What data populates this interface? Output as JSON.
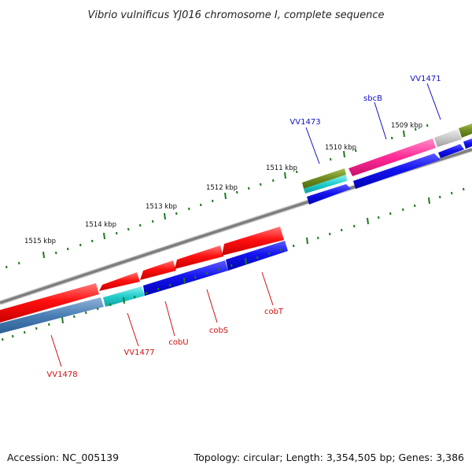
{
  "title": "Vibrio vulnificus YJ016 chromosome I, complete sequence",
  "colors": {
    "backbone": "#808080",
    "tick": "#1a7a1a",
    "label_top": "#1010c8",
    "label_bottom": "#d01010"
  },
  "tick_labels": [
    "1509 kbp",
    "1510 kbp",
    "1511 kbp",
    "1512 kbp",
    "1513 kbp",
    "1514 kbp",
    "1515 kbp"
  ],
  "gene_labels": {
    "top": [
      "VV1471",
      "sbcB",
      "VV1473"
    ],
    "bottom": [
      "cobT",
      "cobS",
      "cobU",
      "VV1477",
      "VV1478"
    ]
  },
  "footer": {
    "accession": "Accession: NC_005139",
    "topology": "Topology: circular; Length: 3,354,505 bp; Genes: 3,386"
  }
}
